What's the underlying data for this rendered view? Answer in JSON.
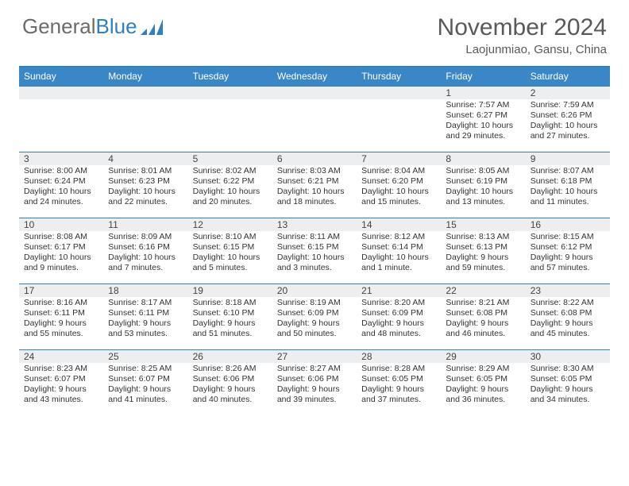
{
  "logo": {
    "text1": "General",
    "text2": "Blue"
  },
  "title": "November 2024",
  "subtitle": "Laojunmiao, Gansu, China",
  "colors": {
    "header_bg": "#3a87c7",
    "header_border": "#2f7fc1",
    "daynum_bg": "#eceef0",
    "text": "#333333",
    "title": "#595959"
  },
  "day_names": [
    "Sunday",
    "Monday",
    "Tuesday",
    "Wednesday",
    "Thursday",
    "Friday",
    "Saturday"
  ],
  "weeks": [
    [
      {
        "n": "",
        "lines": []
      },
      {
        "n": "",
        "lines": []
      },
      {
        "n": "",
        "lines": []
      },
      {
        "n": "",
        "lines": []
      },
      {
        "n": "",
        "lines": []
      },
      {
        "n": "1",
        "lines": [
          "Sunrise: 7:57 AM",
          "Sunset: 6:27 PM",
          "Daylight: 10 hours and 29 minutes."
        ]
      },
      {
        "n": "2",
        "lines": [
          "Sunrise: 7:59 AM",
          "Sunset: 6:26 PM",
          "Daylight: 10 hours and 27 minutes."
        ]
      }
    ],
    [
      {
        "n": "3",
        "lines": [
          "Sunrise: 8:00 AM",
          "Sunset: 6:24 PM",
          "Daylight: 10 hours and 24 minutes."
        ]
      },
      {
        "n": "4",
        "lines": [
          "Sunrise: 8:01 AM",
          "Sunset: 6:23 PM",
          "Daylight: 10 hours and 22 minutes."
        ]
      },
      {
        "n": "5",
        "lines": [
          "Sunrise: 8:02 AM",
          "Sunset: 6:22 PM",
          "Daylight: 10 hours and 20 minutes."
        ]
      },
      {
        "n": "6",
        "lines": [
          "Sunrise: 8:03 AM",
          "Sunset: 6:21 PM",
          "Daylight: 10 hours and 18 minutes."
        ]
      },
      {
        "n": "7",
        "lines": [
          "Sunrise: 8:04 AM",
          "Sunset: 6:20 PM",
          "Daylight: 10 hours and 15 minutes."
        ]
      },
      {
        "n": "8",
        "lines": [
          "Sunrise: 8:05 AM",
          "Sunset: 6:19 PM",
          "Daylight: 10 hours and 13 minutes."
        ]
      },
      {
        "n": "9",
        "lines": [
          "Sunrise: 8:07 AM",
          "Sunset: 6:18 PM",
          "Daylight: 10 hours and 11 minutes."
        ]
      }
    ],
    [
      {
        "n": "10",
        "lines": [
          "Sunrise: 8:08 AM",
          "Sunset: 6:17 PM",
          "Daylight: 10 hours and 9 minutes."
        ]
      },
      {
        "n": "11",
        "lines": [
          "Sunrise: 8:09 AM",
          "Sunset: 6:16 PM",
          "Daylight: 10 hours and 7 minutes."
        ]
      },
      {
        "n": "12",
        "lines": [
          "Sunrise: 8:10 AM",
          "Sunset: 6:15 PM",
          "Daylight: 10 hours and 5 minutes."
        ]
      },
      {
        "n": "13",
        "lines": [
          "Sunrise: 8:11 AM",
          "Sunset: 6:15 PM",
          "Daylight: 10 hours and 3 minutes."
        ]
      },
      {
        "n": "14",
        "lines": [
          "Sunrise: 8:12 AM",
          "Sunset: 6:14 PM",
          "Daylight: 10 hours and 1 minute."
        ]
      },
      {
        "n": "15",
        "lines": [
          "Sunrise: 8:13 AM",
          "Sunset: 6:13 PM",
          "Daylight: 9 hours and 59 minutes."
        ]
      },
      {
        "n": "16",
        "lines": [
          "Sunrise: 8:15 AM",
          "Sunset: 6:12 PM",
          "Daylight: 9 hours and 57 minutes."
        ]
      }
    ],
    [
      {
        "n": "17",
        "lines": [
          "Sunrise: 8:16 AM",
          "Sunset: 6:11 PM",
          "Daylight: 9 hours and 55 minutes."
        ]
      },
      {
        "n": "18",
        "lines": [
          "Sunrise: 8:17 AM",
          "Sunset: 6:11 PM",
          "Daylight: 9 hours and 53 minutes."
        ]
      },
      {
        "n": "19",
        "lines": [
          "Sunrise: 8:18 AM",
          "Sunset: 6:10 PM",
          "Daylight: 9 hours and 51 minutes."
        ]
      },
      {
        "n": "20",
        "lines": [
          "Sunrise: 8:19 AM",
          "Sunset: 6:09 PM",
          "Daylight: 9 hours and 50 minutes."
        ]
      },
      {
        "n": "21",
        "lines": [
          "Sunrise: 8:20 AM",
          "Sunset: 6:09 PM",
          "Daylight: 9 hours and 48 minutes."
        ]
      },
      {
        "n": "22",
        "lines": [
          "Sunrise: 8:21 AM",
          "Sunset: 6:08 PM",
          "Daylight: 9 hours and 46 minutes."
        ]
      },
      {
        "n": "23",
        "lines": [
          "Sunrise: 8:22 AM",
          "Sunset: 6:08 PM",
          "Daylight: 9 hours and 45 minutes."
        ]
      }
    ],
    [
      {
        "n": "24",
        "lines": [
          "Sunrise: 8:23 AM",
          "Sunset: 6:07 PM",
          "Daylight: 9 hours and 43 minutes."
        ]
      },
      {
        "n": "25",
        "lines": [
          "Sunrise: 8:25 AM",
          "Sunset: 6:07 PM",
          "Daylight: 9 hours and 41 minutes."
        ]
      },
      {
        "n": "26",
        "lines": [
          "Sunrise: 8:26 AM",
          "Sunset: 6:06 PM",
          "Daylight: 9 hours and 40 minutes."
        ]
      },
      {
        "n": "27",
        "lines": [
          "Sunrise: 8:27 AM",
          "Sunset: 6:06 PM",
          "Daylight: 9 hours and 39 minutes."
        ]
      },
      {
        "n": "28",
        "lines": [
          "Sunrise: 8:28 AM",
          "Sunset: 6:05 PM",
          "Daylight: 9 hours and 37 minutes."
        ]
      },
      {
        "n": "29",
        "lines": [
          "Sunrise: 8:29 AM",
          "Sunset: 6:05 PM",
          "Daylight: 9 hours and 36 minutes."
        ]
      },
      {
        "n": "30",
        "lines": [
          "Sunrise: 8:30 AM",
          "Sunset: 6:05 PM",
          "Daylight: 9 hours and 34 minutes."
        ]
      }
    ]
  ]
}
